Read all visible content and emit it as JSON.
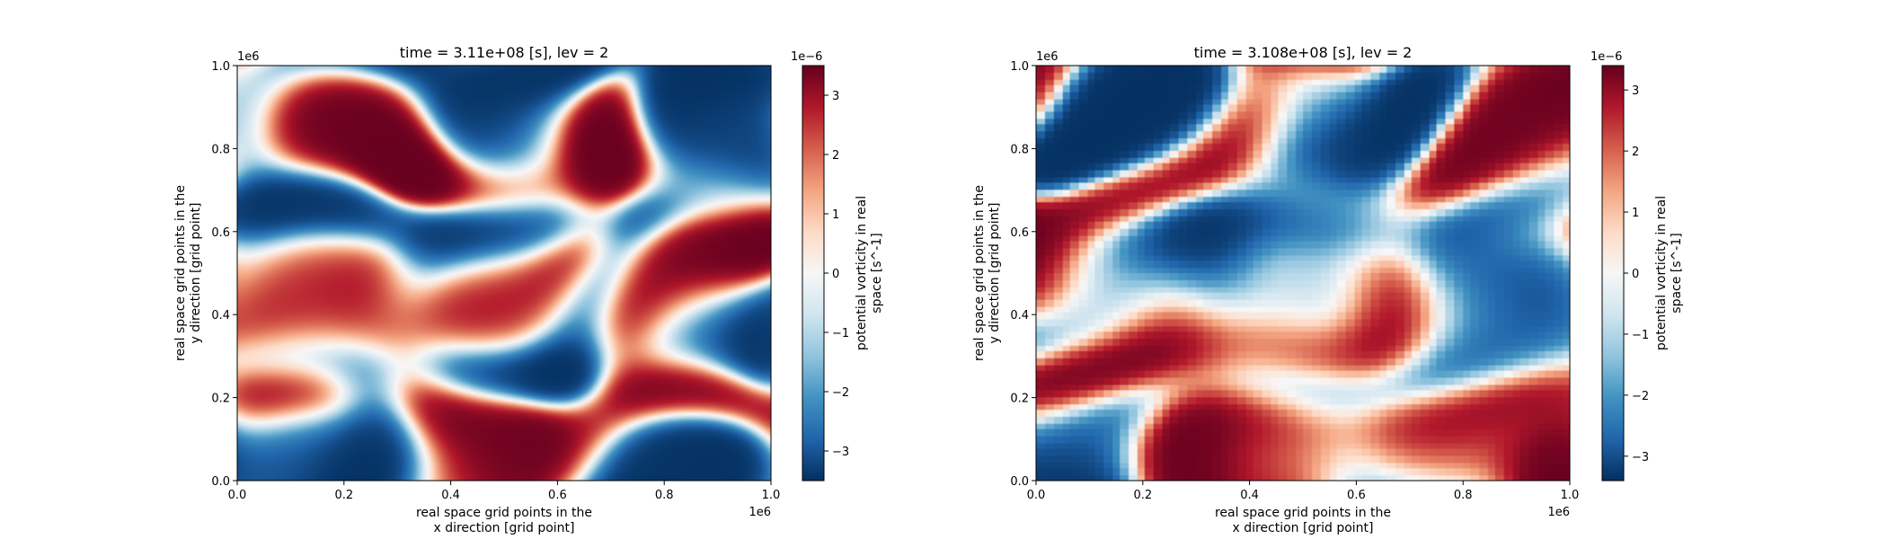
{
  "chart_data": [
    {
      "type": "heatmap",
      "title": "time = 3.11e+08 [s], lev = 2",
      "xlabel_lines": [
        "real space grid points in the",
        "x direction [grid point]"
      ],
      "ylabel_lines": [
        "real space grid points in the",
        "y direction [grid point]"
      ],
      "x_ticks": [
        "0.0",
        "0.2",
        "0.4",
        "0.6",
        "0.8",
        "1.0"
      ],
      "y_ticks": [
        "0.0",
        "0.2",
        "0.4",
        "0.6",
        "0.8",
        "1.0"
      ],
      "x_offset": "1e6",
      "y_offset": "1e6",
      "xlim": [
        0,
        1000000
      ],
      "ylim": [
        0,
        1000000
      ],
      "colormap": "RdBu_r",
      "colorbar": {
        "label_lines": [
          "potential vorticity in real",
          "space [s^-1]"
        ],
        "ticks": [
          "−3",
          "−2",
          "−1",
          "0",
          "1",
          "2",
          "3"
        ],
        "offset": "1e−6",
        "range": [
          -3.5,
          3.5
        ]
      },
      "field_style": "smooth"
    },
    {
      "type": "heatmap",
      "title": "time = 3.108e+08 [s], lev = 2",
      "xlabel_lines": [
        "real space grid points in the",
        "x direction [grid point]"
      ],
      "ylabel_lines": [
        "real space grid points in the",
        "y direction [grid point]"
      ],
      "x_ticks": [
        "0.0",
        "0.2",
        "0.4",
        "0.6",
        "0.8",
        "1.0"
      ],
      "y_ticks": [
        "0.0",
        "0.2",
        "0.4",
        "0.6",
        "0.8",
        "1.0"
      ],
      "x_offset": "1e6",
      "y_offset": "1e6",
      "xlim": [
        0,
        1000000
      ],
      "ylim": [
        0,
        1000000
      ],
      "colormap": "RdBu_r",
      "colorbar": {
        "label_lines": [
          "potential vorticity in real",
          "space [s^-1]"
        ],
        "ticks": [
          "−3",
          "−2",
          "−1",
          "0",
          "1",
          "2",
          "3"
        ],
        "offset": "1e−6",
        "range": [
          -3.4,
          3.4
        ]
      },
      "field_style": "pixelated"
    }
  ]
}
